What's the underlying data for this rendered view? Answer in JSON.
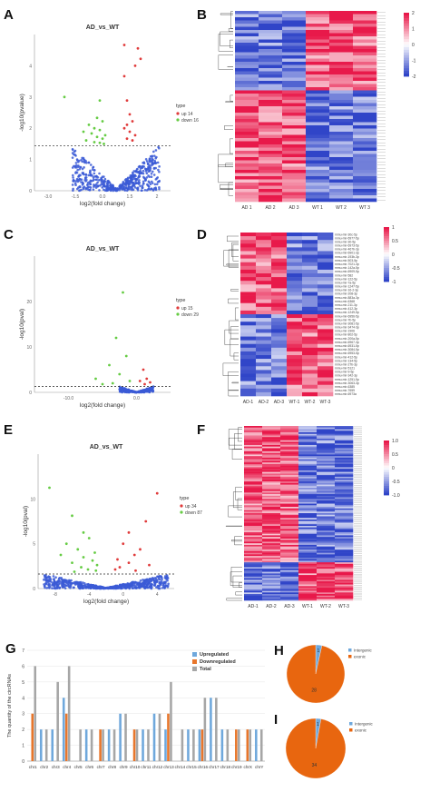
{
  "panels": {
    "A": {
      "label": "A",
      "chart_data": {
        "type": "scatter",
        "title": "AD_vs_WT",
        "xlabel": "log2(fold change)",
        "ylabel": "-log10(pvalue)",
        "xlim": [
          -3,
          2
        ],
        "ylim": [
          0,
          4.5
        ],
        "x_ticks": [
          "-3.0",
          "-1.5",
          "0.0",
          "1.5",
          "2"
        ],
        "y_ticks": [
          "0",
          "1",
          "2",
          "3",
          "4"
        ],
        "threshold_y": 1.3,
        "legend_title": "type",
        "legend": [
          {
            "name": "up 14",
            "color": "#e03b3b"
          },
          {
            "name": "down 16",
            "color": "#66cc44"
          }
        ],
        "series": [
          {
            "name": "up 14",
            "color": "#e03b3b",
            "points": [
              [
                0.3,
                4.2
              ],
              [
                0.8,
                4.1
              ],
              [
                0.9,
                3.8
              ],
              [
                0.7,
                3.6
              ],
              [
                0.3,
                3.3
              ],
              [
                0.4,
                2.6
              ],
              [
                0.5,
                2.2
              ],
              [
                0.6,
                2.0
              ],
              [
                0.4,
                1.9
              ],
              [
                0.3,
                1.8
              ],
              [
                0.5,
                1.7
              ],
              [
                0.7,
                1.6
              ],
              [
                0.4,
                1.5
              ],
              [
                0.6,
                1.45
              ]
            ]
          },
          {
            "name": "down 16",
            "color": "#66cc44",
            "points": [
              [
                -1.9,
                2.7
              ],
              [
                -0.6,
                2.6
              ],
              [
                -0.7,
                2.1
              ],
              [
                -0.5,
                2.0
              ],
              [
                -1.0,
                1.9
              ],
              [
                -0.8,
                1.8
              ],
              [
                -0.6,
                1.75
              ],
              [
                -1.2,
                1.7
              ],
              [
                -0.9,
                1.65
              ],
              [
                -0.4,
                1.6
              ],
              [
                -0.7,
                1.55
              ],
              [
                -0.5,
                1.5
              ],
              [
                -1.1,
                1.45
              ],
              [
                -0.8,
                1.4
              ],
              [
                -0.6,
                1.38
              ],
              [
                -0.45,
                1.35
              ]
            ]
          },
          {
            "name": "nodiff",
            "color": "#3b5bd6",
            "cloud": {
              "half_width": 1.6,
              "top": 1.3,
              "count": 520
            }
          }
        ]
      }
    },
    "B": {
      "label": "B",
      "chart_data": {
        "type": "heatmap",
        "columns": [
          "AD 1",
          "AD 2",
          "AD 3",
          "WT 1",
          "WT 2",
          "WT 3"
        ],
        "rows": 60,
        "color_low": "#3045c8",
        "color_mid": "#ffffff",
        "color_high": "#e8194a",
        "scale_ticks": [
          "2",
          "1",
          "0",
          "-1",
          "-2"
        ],
        "split_row": 0.42
      }
    },
    "C": {
      "label": "C",
      "chart_data": {
        "type": "scatter",
        "title": "AD_vs_WT",
        "xlabel": "log2(fold change)",
        "ylabel": "-log10(pval)",
        "xlim": [
          -15,
          5
        ],
        "ylim": [
          0,
          30
        ],
        "x_ticks": [
          "-10.0",
          "0.0"
        ],
        "y_ticks": [
          "0",
          "10",
          "20"
        ],
        "threshold_y": 1.3,
        "legend_title": "type",
        "legend": [
          {
            "name": "up 15",
            "color": "#e03b3b"
          },
          {
            "name": "down 29",
            "color": "#66cc44"
          }
        ],
        "series": [
          {
            "name": "up 15",
            "color": "#e03b3b",
            "points": [
              [
                1.0,
                5
              ],
              [
                1.5,
                3
              ],
              [
                0.5,
                2.5
              ],
              [
                2.0,
                2.2
              ],
              [
                1.2,
                1.8
              ]
            ]
          },
          {
            "name": "down 29",
            "color": "#66cc44",
            "points": [
              [
                -2,
                22
              ],
              [
                -3,
                12
              ],
              [
                -1.5,
                8
              ],
              [
                -4,
                6
              ],
              [
                -2.5,
                4
              ],
              [
                -6,
                3
              ],
              [
                -1,
                2.5
              ],
              [
                -3.5,
                2
              ],
              [
                -5,
                1.8
              ]
            ]
          },
          {
            "name": "nodiff",
            "color": "#3b5bd6",
            "cloud": {
              "half_width": 2.5,
              "top": 1.3,
              "count": 260
            }
          }
        ]
      }
    },
    "D": {
      "label": "D",
      "chart_data": {
        "type": "heatmap",
        "columns": [
          "AD-1",
          "AD-2",
          "AD-3",
          "WT-1",
          "WT-2",
          "WT-3"
        ],
        "rows": 44,
        "color_low": "#3045c8",
        "color_mid": "#ffffff",
        "color_high": "#e8194a",
        "scale_ticks": [
          "1",
          "0.5",
          "0",
          "-0.5",
          "-1"
        ],
        "row_labels": [
          "mmu-mir-30c-5p",
          "mmu-mir-6977-5p",
          "mmu-mir-30-5p",
          "mmu-mir-6973-5p",
          "mmu-mir-467b-3p",
          "mmu-mir-6901-3p",
          "mmu-mir-193b-3p",
          "mmu-mir-503-5p",
          "mmu-mir-7021-3p",
          "mmu-mir-142a-5p",
          "mmu-mir-6909-5p",
          "mmu-mir-582",
          "mmu-mir-122-5p",
          "mmu-mir-7a-5p",
          "mmu-mir-1247-5p",
          "mmu-mir-16-2-3p",
          "mmu-mir-208-3p",
          "mmu-mir-883a-3p",
          "mmu-mir-6368",
          "mmu-mir-211-3p",
          "mmu-mir-412-3p",
          "mmu-mir-1249-5p",
          "mmu-mir-6956-5p",
          "mmu-mir-7b-5p",
          "mmu-mir-3081-5p",
          "mmu-mir-3474-3p",
          "mmu-mir-1906",
          "mmu-mir-802-5p",
          "mmu-mir-200a-5p",
          "mmu-mir-6967-3p",
          "mmu-mir-6931-5p",
          "mmu-mir-3084-5p",
          "mmu-mir-6953-5p",
          "mmu-mir-412-5p",
          "mmu-mir-134-5p",
          "mmu-mir-27b-3p",
          "mmu-mir-5121",
          "mmu-mir-9-5p",
          "mmu-mir-342-3p",
          "mmu-mir-1251-5p",
          "mmu-mir-3063-3p",
          "mmu-mir-6385",
          "mmu-mir-7659",
          "mmu-mir-6973a"
        ],
        "split_row": 0.5
      }
    },
    "E": {
      "label": "E",
      "chart_data": {
        "type": "scatter",
        "title": "AD_vs_WT",
        "xlabel": "log2(fold change)",
        "ylabel": "-log10(pval)",
        "xlim": [
          -6,
          6
        ],
        "ylim": [
          0,
          12
        ],
        "x_ticks": [
          "-8",
          "-4",
          "0",
          "4"
        ],
        "y_ticks": [
          "0",
          "5",
          "10"
        ],
        "threshold_y": 1.3,
        "legend_title": "type",
        "legend": [
          {
            "name": "up 34",
            "color": "#e03b3b"
          },
          {
            "name": "down 87",
            "color": "#66cc44"
          }
        ],
        "series": [
          {
            "name": "up 34",
            "color": "#e03b3b",
            "points": [
              [
                4.5,
                8.5
              ],
              [
                3.5,
                6
              ],
              [
                2,
                5
              ],
              [
                1.5,
                4
              ],
              [
                3,
                3.5
              ],
              [
                2.5,
                3
              ],
              [
                1,
                2.6
              ],
              [
                2,
                2.3
              ],
              [
                3.8,
                2.1
              ],
              [
                1.2,
                1.9
              ],
              [
                0.8,
                1.7
              ],
              [
                2.6,
                1.6
              ]
            ]
          },
          {
            "name": "down 87",
            "color": "#66cc44",
            "points": [
              [
                -5,
                9
              ],
              [
                -3,
                6.5
              ],
              [
                -2,
                5
              ],
              [
                -1.5,
                4.5
              ],
              [
                -3.5,
                4
              ],
              [
                -2.5,
                3.5
              ],
              [
                -1,
                3.2
              ],
              [
                -4,
                3
              ],
              [
                -2,
                2.8
              ],
              [
                -1.2,
                2.5
              ],
              [
                -3,
                2.3
              ],
              [
                -0.8,
                2.1
              ],
              [
                -2.2,
                1.9
              ],
              [
                -1.6,
                1.7
              ],
              [
                -0.9,
                1.6
              ],
              [
                -2.8,
                1.5
              ]
            ]
          },
          {
            "name": "nodiff",
            "color": "#3b5bd6",
            "cloud": {
              "half_width": 5.5,
              "top": 1.3,
              "count": 650
            }
          }
        ]
      }
    },
    "F": {
      "label": "F",
      "chart_data": {
        "type": "heatmap",
        "columns": [
          "AD-1",
          "AD-2",
          "AD-3",
          "WT-1",
          "WT-2",
          "WT-3"
        ],
        "rows": 110,
        "color_low": "#3045c8",
        "color_mid": "#ffffff",
        "color_high": "#e8194a",
        "scale_ticks": [
          "1.0",
          "0.5",
          "0",
          "-0.5",
          "-1.0"
        ],
        "split_row": 0.78
      }
    },
    "G": {
      "label": "G",
      "chart_data": {
        "type": "bar",
        "ylabel": "The quantity of the circRNAs",
        "categories": [
          "chr1",
          "chr2",
          "chr3",
          "chr4",
          "chr5",
          "chr6",
          "chr7",
          "chr8",
          "chr9",
          "chr10",
          "chr11",
          "chr12",
          "chr13",
          "chr14",
          "chr15",
          "chr16",
          "chr17",
          "chr18",
          "chr19",
          "chrX",
          "chrY"
        ],
        "ylim": [
          0,
          7
        ],
        "y_ticks": [
          "0",
          "1",
          "2",
          "3",
          "4",
          "5",
          "6",
          "7"
        ],
        "legend": [
          "Upregulated",
          "Downregulated",
          "Total"
        ],
        "series": [
          {
            "name": "Upregulated",
            "color": "#6fa8dc",
            "values": [
              0,
              2,
              2,
              4,
              0,
              2,
              0,
              2,
              3,
              0,
              2,
              3,
              2,
              0,
              2,
              2,
              4,
              2,
              0,
              0,
              2
            ]
          },
          {
            "name": "Downregulated",
            "color": "#e8762b",
            "values": [
              3,
              0,
              0,
              3,
              0,
              0,
              2,
              0,
              0,
              2,
              0,
              0,
              3,
              0,
              0,
              2,
              0,
              0,
              2,
              2,
              0
            ]
          },
          {
            "name": "Total",
            "color": "#a6a6a6",
            "values": [
              6,
              2,
              5,
              6,
              2,
              2,
              2,
              2,
              3,
              2,
              2,
              3,
              5,
              2,
              2,
              4,
              4,
              2,
              2,
              2,
              2
            ]
          }
        ]
      }
    },
    "H": {
      "label": "H",
      "chart_data": {
        "type": "pie",
        "legend": [
          "Intergenic",
          "exonic"
        ],
        "colors": [
          "#6fa8dc",
          "#e8660f"
        ],
        "values": [
          1,
          28
        ],
        "slice_labels": [
          "1",
          "28"
        ]
      }
    },
    "I": {
      "label": "I",
      "chart_data": {
        "type": "pie",
        "legend": [
          "Intergenic",
          "exonic"
        ],
        "colors": [
          "#6fa8dc",
          "#e8660f"
        ],
        "values": [
          1,
          34
        ],
        "slice_labels": [
          "1",
          "34"
        ]
      }
    }
  }
}
